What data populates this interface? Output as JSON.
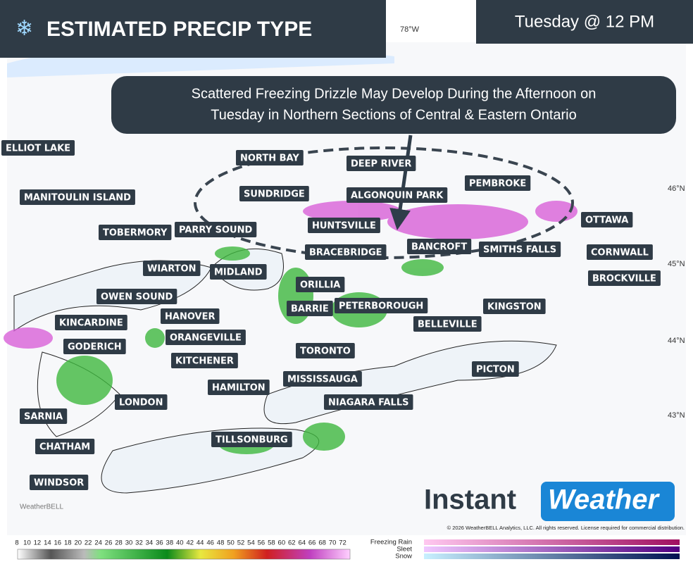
{
  "header": {
    "title": "ESTIMATED PRECIP TYPE",
    "time": "Tuesday @ 12 PM"
  },
  "callout": {
    "line1": "Scattered Freezing Drizzle May Develop During the Afternoon on",
    "line2": "Tuesday in Northern Sections of Central & Eastern Ontario"
  },
  "coordinates": {
    "lon": "78°W",
    "lat": [
      "46°N",
      "45°N",
      "44°N",
      "43°N"
    ]
  },
  "cities": [
    "ELLIOT LAKE",
    "MANITOULIN ISLAND",
    "TOBERMORY",
    "PARRY SOUND",
    "NORTH BAY",
    "SUNDRIDGE",
    "DEEP RIVER",
    "ALGONQUIN PARK",
    "PEMBROKE",
    "HUNTSVILLE",
    "BRACEBRIDGE",
    "BANCROFT",
    "SMITHS FALLS",
    "OTTAWA",
    "CORNWALL",
    "BROCKVILLE",
    "WIARTON",
    "MIDLAND",
    "ORILLIA",
    "OWEN SOUND",
    "BARRIE",
    "PETERBOROUGH",
    "KINGSTON",
    "HANOVER",
    "KINCARDINE",
    "BELLEVILLE",
    "ORANGEVILLE",
    "GODERICH",
    "TORONTO",
    "KITCHENER",
    "PICTON",
    "MISSISSAUGA",
    "HAMILTON",
    "LONDON",
    "NIAGARA FALLS",
    "SARNIA",
    "TILLSONBURG",
    "CHATHAM",
    "WINDSOR"
  ],
  "branding": {
    "logo_a": "Instant",
    "logo_b": "Weather",
    "watermark": "WeatherBELL",
    "copyright": "© 2026 WeatherBELL Analytics, LLC. All rights reserved. License required for commercial distribution."
  },
  "legend": {
    "ticks": [
      "8",
      "10",
      "12",
      "14",
      "16",
      "18",
      "20",
      "22",
      "24",
      "26",
      "28",
      "30",
      "32",
      "34",
      "36",
      "38",
      "40",
      "42",
      "44",
      "46",
      "48",
      "50",
      "52",
      "54",
      "56",
      "58",
      "60",
      "62",
      "64",
      "66",
      "68",
      "70",
      "72"
    ],
    "types": [
      "Freezing Rain",
      "Sleet",
      "Snow"
    ]
  }
}
